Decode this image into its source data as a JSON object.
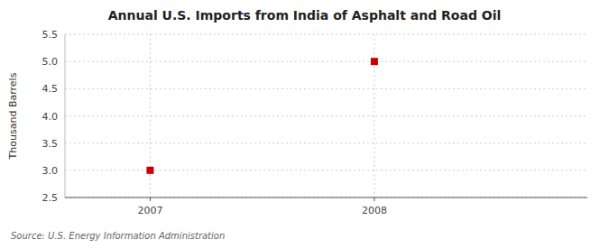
{
  "chart_data": {
    "type": "scatter",
    "title": "Annual U.S. Imports from India of Asphalt and Road Oil",
    "y_label": "Thousand Barrels",
    "source": "Source: U.S. Energy Information Administration",
    "x": [
      2007,
      2008
    ],
    "values": [
      3.0,
      5.0
    ],
    "color": "#cc0000",
    "marker": "square",
    "xlim": [
      2006.62,
      2008.95
    ],
    "ylim": [
      2.5,
      5.5
    ],
    "xticks": [
      2007,
      2008
    ],
    "yticks": [
      2.5,
      {
        "value": 3.0,
        "label": "3.0"
      },
      3.5,
      {
        "value": 4.0,
        "label": "4.0"
      },
      4.5,
      {
        "value": 5.0,
        "label": "5.0"
      },
      5.5
    ],
    "grid": true
  }
}
